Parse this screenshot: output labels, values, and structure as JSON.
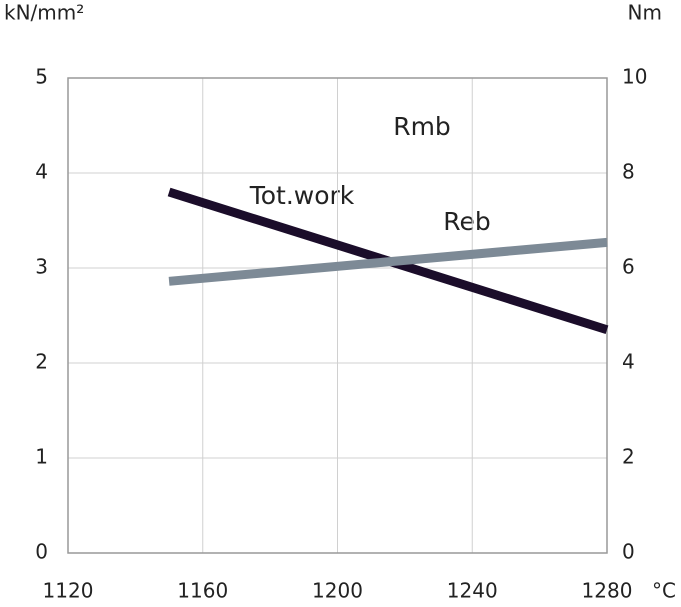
{
  "chart_data": {
    "type": "line",
    "y_label": "kN/mm²",
    "y2_label": "Nm",
    "x_label": "°C",
    "annotations": [
      "Rmb",
      "Tot.work",
      "Reb"
    ],
    "x": [
      1150,
      1280
    ],
    "series": [
      {
        "name": "Tot.work",
        "color": "#1b0d2a",
        "axis": "y2",
        "values": [
          7.6,
          4.7
        ]
      },
      {
        "name": "Reb",
        "color": "#7d8a96",
        "values": [
          2.86,
          3.27
        ]
      }
    ],
    "xlim": [
      1120,
      1280
    ],
    "xticks": [
      1120,
      1160,
      1200,
      1240,
      1280
    ],
    "ylim": [
      0,
      5
    ],
    "yticks": [
      0,
      1,
      2,
      3,
      4,
      5
    ],
    "y2lim": [
      0,
      10
    ],
    "y2ticks": [
      0,
      2,
      4,
      6,
      8,
      10
    ],
    "grid": true
  }
}
